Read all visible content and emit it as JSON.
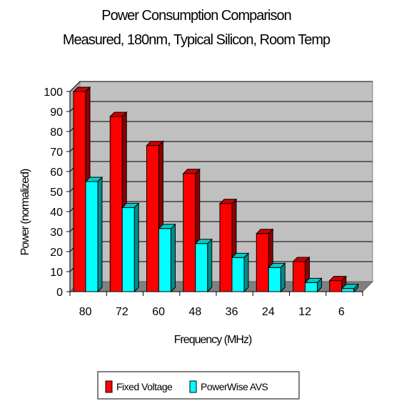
{
  "chart_data": {
    "type": "bar",
    "title": "Power Consumption Comparison",
    "subtitle": "Measured, 180nm, Typical Silicon, Room Temp",
    "xlabel": "Frequency (MHz)",
    "ylabel": "Power (normalized)",
    "categories": [
      "80",
      "72",
      "60",
      "48",
      "36",
      "24",
      "12",
      "6"
    ],
    "series": [
      {
        "name": "Fixed Voltage",
        "color": "#ff0000",
        "values": [
          100,
          87.5,
          73,
          59,
          44,
          29,
          15,
          5.5
        ]
      },
      {
        "name": "PowerWise AVS",
        "color": "#00ffff",
        "values": [
          55,
          42,
          31.5,
          24,
          17,
          12,
          4.5,
          1.5
        ]
      }
    ],
    "ylim": [
      0,
      100
    ],
    "yticks": [
      0,
      10,
      20,
      30,
      40,
      50,
      60,
      70,
      80,
      90,
      100
    ],
    "grid": true,
    "legend_position": "bottom",
    "plot_background": "#c0c0c0"
  }
}
